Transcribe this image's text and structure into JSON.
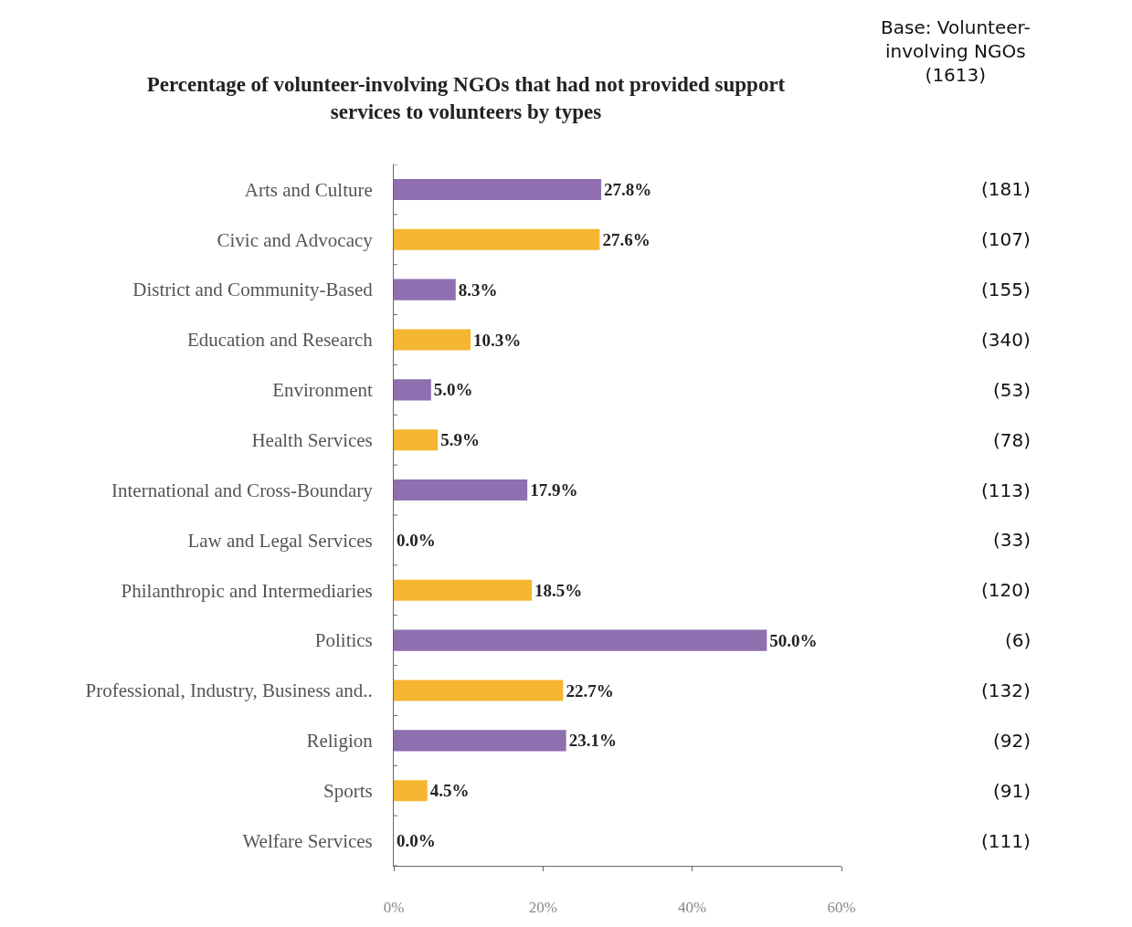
{
  "chart_data": {
    "type": "bar",
    "orientation": "horizontal",
    "title": "Percentage of volunteer-involving NGOs that had not provided support\nservices to volunteers by types",
    "categories": [
      "Arts and Culture",
      "Civic and Advocacy",
      "District and Community-Based",
      "Education and Research",
      "Environment",
      "Health Services",
      "International and Cross-Boundary",
      "Law and Legal Services",
      "Philanthropic and Intermediaries",
      "Politics",
      "Professional, Industry, Business and..",
      "Religion",
      "Sports",
      "Welfare Services"
    ],
    "values": [
      27.8,
      27.6,
      8.3,
      10.3,
      5.0,
      5.9,
      17.9,
      0.0,
      18.5,
      50.0,
      22.7,
      23.1,
      4.5,
      0.0
    ],
    "colors": [
      "#8e6fb0",
      "#f5b731",
      "#8e6fb0",
      "#f5b731",
      "#8e6fb0",
      "#f5b731",
      "#8e6fb0",
      "#f5b731",
      "#f5b731",
      "#8e6fb0",
      "#f5b731",
      "#8e6fb0",
      "#f5b731",
      "#f5b731"
    ],
    "value_labels": [
      "27.8%",
      "27.6%",
      "8.3%",
      "10.3%",
      "5.0%",
      "5.9%",
      "17.9%",
      "0.0%",
      "18.5%",
      "50.0%",
      "22.7%",
      "23.1%",
      "4.5%",
      "0.0%"
    ],
    "xlim": [
      0,
      60
    ],
    "xticks": [
      {
        "value": 0,
        "label": "0%"
      },
      {
        "value": 20,
        "label": "20%"
      },
      {
        "value": 40,
        "label": "40%"
      },
      {
        "value": 60,
        "label": "60%"
      }
    ],
    "legend": false,
    "annotations": [
      "Base: Volunteer-\ninvolving NGOs\n(1613)",
      "(181)",
      "(107)",
      "(155)",
      "(340)",
      "(53)",
      "(78)",
      "(113)",
      "(33)",
      "(120)",
      "(6)",
      "(132)",
      "(92)",
      "(91)",
      "(111)"
    ]
  }
}
